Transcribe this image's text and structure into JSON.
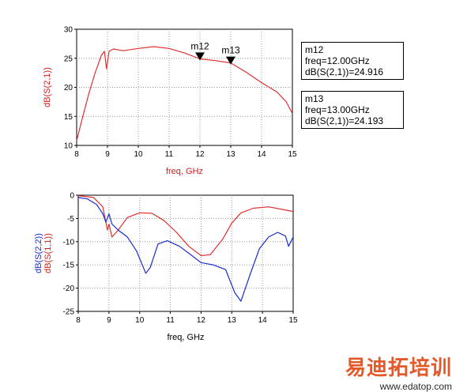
{
  "chart_data": [
    {
      "type": "line",
      "xlabel": "freq, GHz",
      "ylabel": "dB(S(2,1))",
      "xlim": [
        8,
        15
      ],
      "ylim": [
        10,
        30
      ],
      "xticks": [
        "8",
        "9",
        "10",
        "11",
        "12",
        "13",
        "14",
        "15"
      ],
      "yticks": [
        "30",
        "25",
        "20",
        "15",
        "10"
      ],
      "grid": true,
      "series": [
        {
          "name": "dB(S(2,1))",
          "color": "#e03030",
          "points": [
            [
              8.0,
              10.8
            ],
            [
              8.2,
              15.0
            ],
            [
              8.4,
              19.0
            ],
            [
              8.6,
              22.5
            ],
            [
              8.8,
              25.5
            ],
            [
              8.9,
              26.2
            ],
            [
              8.97,
              23.2
            ],
            [
              9.05,
              26.2
            ],
            [
              9.2,
              26.6
            ],
            [
              9.5,
              26.3
            ],
            [
              10.0,
              26.7
            ],
            [
              10.5,
              27.0
            ],
            [
              11.0,
              26.7
            ],
            [
              11.5,
              25.9
            ],
            [
              12.0,
              24.9
            ],
            [
              12.5,
              24.6
            ],
            [
              13.0,
              24.2
            ],
            [
              13.5,
              22.6
            ],
            [
              14.0,
              20.8
            ],
            [
              14.5,
              19.2
            ],
            [
              14.8,
              17.5
            ],
            [
              15.0,
              15.5
            ]
          ]
        }
      ],
      "markers": [
        {
          "label": "m12",
          "freq_line": "freq=12.00GHz",
          "value_line": "dB(S(2,1))=24.916",
          "x": 12.0,
          "y": 24.916
        },
        {
          "label": "m13",
          "freq_line": "freq=13.00GHz",
          "value_line": "dB(S(2,1))=24.193",
          "x": 13.0,
          "y": 24.193
        }
      ]
    },
    {
      "type": "line",
      "xlabel": "freq, GHz",
      "ylabels": [
        "dB(S(1,1))",
        "dB(S(2,2))"
      ],
      "xlim": [
        8,
        15
      ],
      "ylim": [
        -25,
        0
      ],
      "xticks": [
        "8",
        "9",
        "10",
        "11",
        "12",
        "13",
        "14",
        "15"
      ],
      "yticks": [
        "0",
        "-5",
        "-10",
        "-15",
        "-20",
        "-25"
      ],
      "grid": true,
      "series": [
        {
          "name": "dB(S(1,1))",
          "color": "#e03030",
          "points": [
            [
              8.0,
              -0.1
            ],
            [
              8.5,
              -0.5
            ],
            [
              8.8,
              -2.5
            ],
            [
              8.95,
              -7.5
            ],
            [
              9.0,
              -6.2
            ],
            [
              9.1,
              -9.0
            ],
            [
              9.3,
              -7.5
            ],
            [
              9.6,
              -4.8
            ],
            [
              10.0,
              -3.8
            ],
            [
              10.4,
              -3.9
            ],
            [
              10.8,
              -5.5
            ],
            [
              11.2,
              -8.0
            ],
            [
              11.6,
              -11.0
            ],
            [
              12.0,
              -13.0
            ],
            [
              12.3,
              -12.8
            ],
            [
              12.7,
              -9.5
            ],
            [
              13.0,
              -6.0
            ],
            [
              13.3,
              -3.8
            ],
            [
              13.7,
              -2.8
            ],
            [
              14.2,
              -2.5
            ],
            [
              14.6,
              -3.0
            ],
            [
              15.0,
              -3.5
            ]
          ]
        },
        {
          "name": "dB(S(2,2))",
          "color": "#1a2bd0",
          "points": [
            [
              8.0,
              -0.5
            ],
            [
              8.3,
              -0.8
            ],
            [
              8.6,
              -2.0
            ],
            [
              8.8,
              -4.0
            ],
            [
              8.9,
              -5.8
            ],
            [
              9.0,
              -4.0
            ],
            [
              9.1,
              -6.2
            ],
            [
              9.3,
              -7.5
            ],
            [
              9.6,
              -9.0
            ],
            [
              9.9,
              -12.0
            ],
            [
              10.2,
              -16.8
            ],
            [
              10.35,
              -15.5
            ],
            [
              10.6,
              -10.5
            ],
            [
              10.9,
              -9.8
            ],
            [
              11.3,
              -11.0
            ],
            [
              11.7,
              -13.0
            ],
            [
              12.0,
              -14.5
            ],
            [
              12.4,
              -15.0
            ],
            [
              12.8,
              -16.0
            ],
            [
              13.1,
              -21.0
            ],
            [
              13.3,
              -22.8
            ],
            [
              13.6,
              -17.0
            ],
            [
              13.9,
              -11.5
            ],
            [
              14.2,
              -9.0
            ],
            [
              14.5,
              -8.0
            ],
            [
              14.75,
              -8.8
            ],
            [
              14.85,
              -11.0
            ],
            [
              15.0,
              -9.0
            ]
          ]
        }
      ]
    }
  ],
  "watermark": {
    "cn": "易迪拓培训",
    "url": "www.edatop.com"
  }
}
